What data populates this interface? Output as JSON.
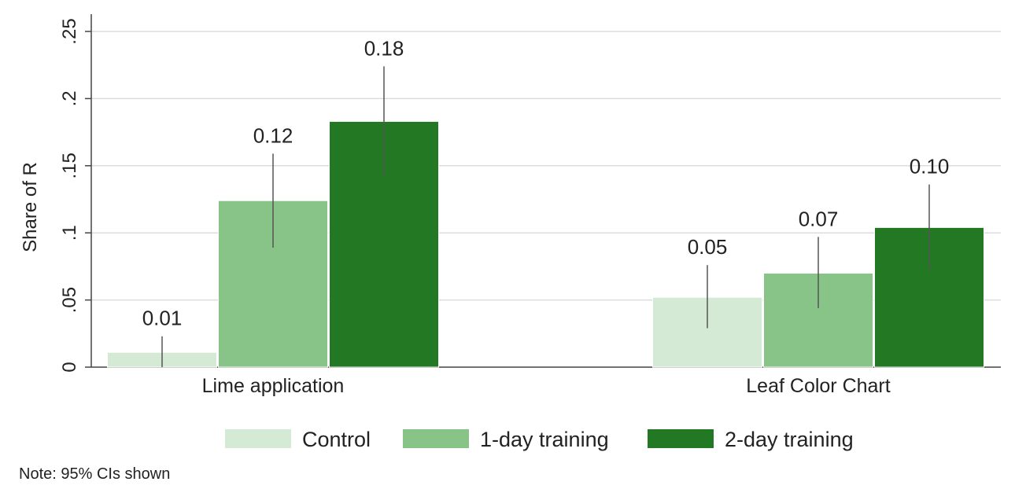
{
  "chart_data": {
    "type": "bar",
    "ylabel": "Share of R",
    "xlabel": "",
    "ylim": [
      0,
      0.25
    ],
    "yticks": [
      0,
      0.05,
      0.1,
      0.15,
      0.2,
      0.25
    ],
    "ytick_labels": [
      "0",
      ".05",
      ".1",
      ".15",
      ".2",
      ".25"
    ],
    "grid": true,
    "legend_position": "bottom",
    "categories": [
      "Lime application",
      "Leaf Color Chart"
    ],
    "series": [
      {
        "name": "Control",
        "color": "#d5ead4",
        "values": [
          0.011,
          0.052
        ],
        "labels": [
          "0.01",
          "0.05"
        ],
        "ci_low": [
          -0.002,
          0.029
        ],
        "ci_high": [
          0.023,
          0.076
        ]
      },
      {
        "name": "1-day training",
        "color": "#88c487",
        "values": [
          0.124,
          0.07
        ],
        "labels": [
          "0.12",
          "0.07"
        ],
        "ci_low": [
          0.089,
          0.044
        ],
        "ci_high": [
          0.159,
          0.097
        ]
      },
      {
        "name": "2-day training",
        "color": "#237823",
        "values": [
          0.183,
          0.104
        ],
        "labels": [
          "0.18",
          "0.10"
        ],
        "ci_low": [
          0.142,
          0.072
        ],
        "ci_high": [
          0.224,
          0.136
        ]
      }
    ]
  },
  "note": "Note:  95% CIs shown"
}
